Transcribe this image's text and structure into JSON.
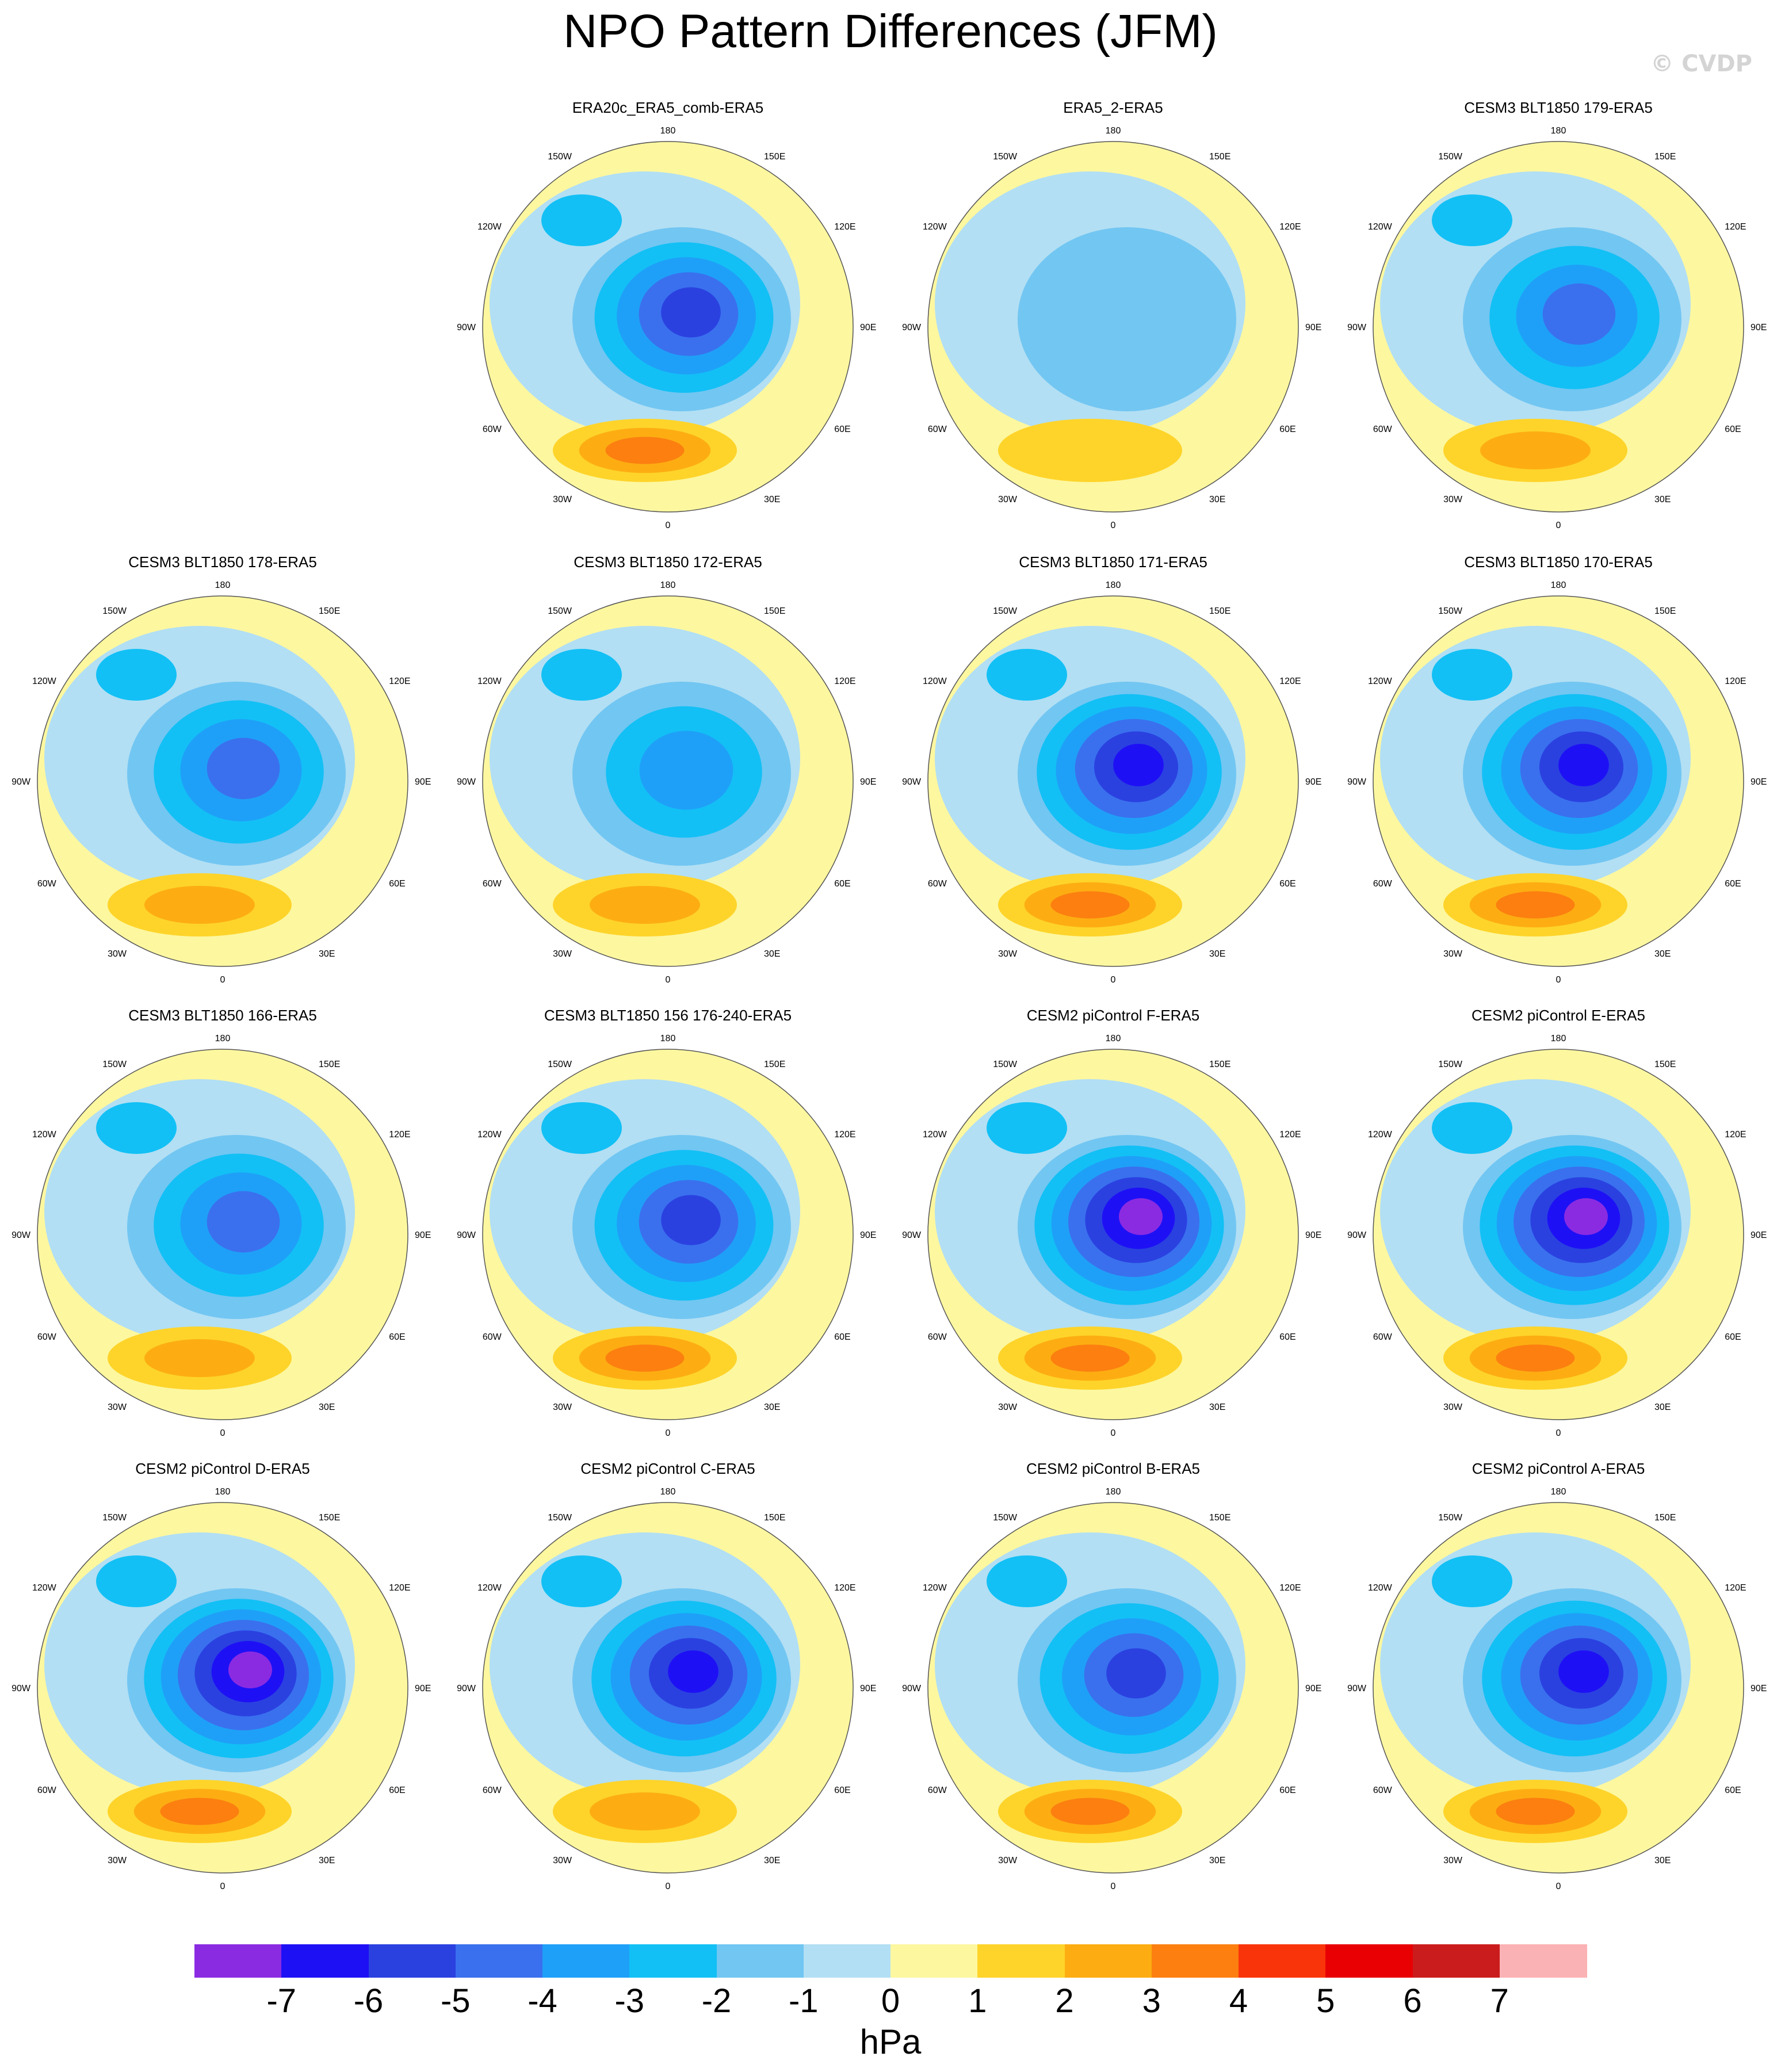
{
  "title": "NPO Pattern Differences (JFM)",
  "watermark": "© CVDP",
  "lon_labels": {
    "top": "180",
    "bottom": "0",
    "left": "90W",
    "right": "90E",
    "upper_left_outer": "150W",
    "upper_left_inner": "120W",
    "upper_right_outer": "150E",
    "upper_right_inner": "120E",
    "lower_left_outer": "30W",
    "lower_left_inner": "60W",
    "lower_right_outer": "30E",
    "lower_right_inner": "60E"
  },
  "panels": [
    {
      "title": "ERA20c_ERA5_comb-ERA5",
      "min": -5,
      "max": 3
    },
    {
      "title": "ERA5_2-ERA5",
      "min": -1,
      "max": 1
    },
    {
      "title": "CESM3 BLT1850 179-ERA5",
      "min": -4,
      "max": 2
    },
    {
      "title": "CESM3 BLT1850 178-ERA5",
      "min": -4,
      "max": 2
    },
    {
      "title": "CESM3 BLT1850 172-ERA5",
      "min": -3,
      "max": 2
    },
    {
      "title": "CESM3 BLT1850 171-ERA5",
      "min": -6,
      "max": 3
    },
    {
      "title": "CESM3 BLT1850 170-ERA5",
      "min": -6,
      "max": 3
    },
    {
      "title": "CESM3 BLT1850 166-ERA5",
      "min": -4,
      "max": 2
    },
    {
      "title": "CESM3 BLT1850 156 176-240-ERA5",
      "min": -5,
      "max": 3
    },
    {
      "title": "CESM2 piControl F-ERA5",
      "min": -7,
      "max": 3
    },
    {
      "title": "CESM2 piControl E-ERA5",
      "min": -7,
      "max": 3
    },
    {
      "title": "CESM2 piControl D-ERA5",
      "min": -7,
      "max": 3
    },
    {
      "title": "CESM2 piControl C-ERA5",
      "min": -6,
      "max": 2
    },
    {
      "title": "CESM2 piControl B-ERA5",
      "min": -5,
      "max": 3
    },
    {
      "title": "CESM2 piControl A-ERA5",
      "min": -6,
      "max": 3
    }
  ],
  "colorbar": {
    "units": "hPa",
    "labels": [
      "-7",
      "-6",
      "-5",
      "-4",
      "-3",
      "-2",
      "-1",
      "0",
      "1",
      "2",
      "3",
      "4",
      "5",
      "6",
      "7"
    ],
    "colors": [
      "#8a2be2",
      "#1e10f5",
      "#2a41e0",
      "#3a70ee",
      "#1fa0f8",
      "#12c0f5",
      "#72c6f2",
      "#b2dff4",
      "#fdf7a0",
      "#fed42a",
      "#fdad12",
      "#fc7f10",
      "#fa340a",
      "#e80003",
      "#cb1c1d",
      "#fbb2b4"
    ]
  }
}
